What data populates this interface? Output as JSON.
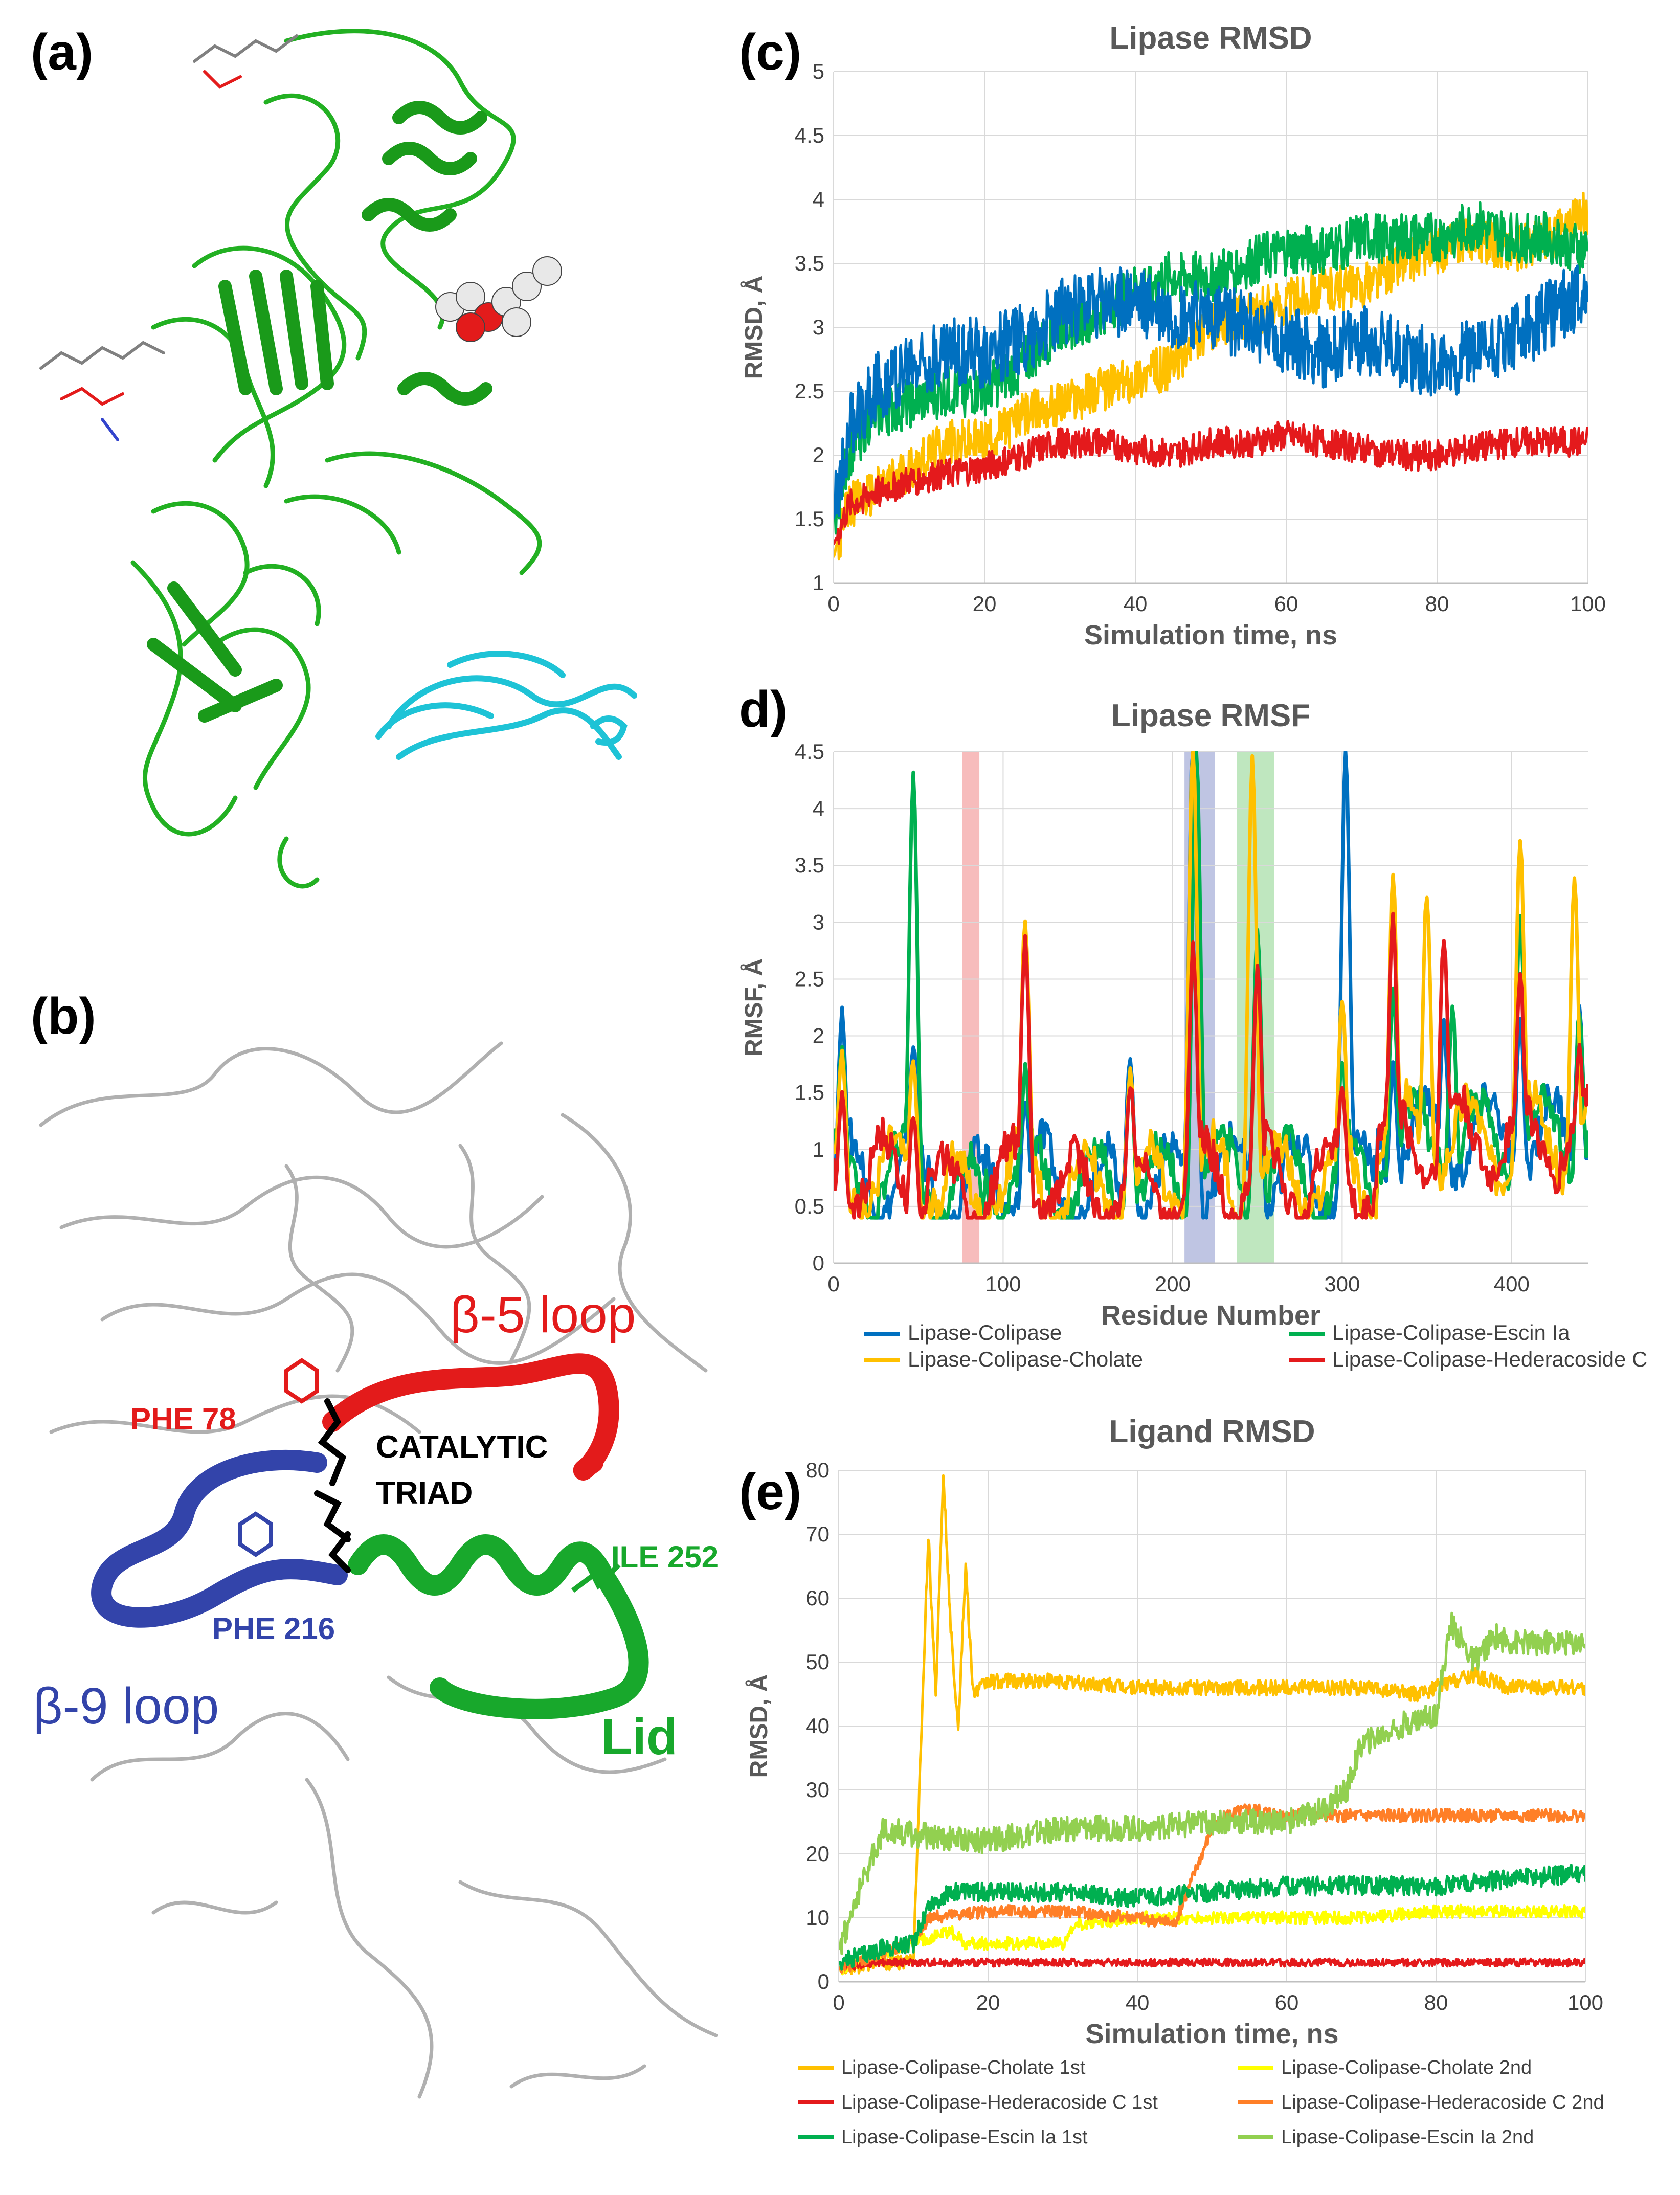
{
  "panels": {
    "a": "(a)",
    "b": "(b)",
    "c": "(c)",
    "d": "d)",
    "e": "(e)"
  },
  "structure_labels": {
    "beta5": "β-5 loop",
    "beta9": "β-9 loop",
    "lid": "Lid",
    "phe78": "PHE 78",
    "phe216": "PHE 216",
    "ile252": "ILE 252",
    "catalytic": "CATALYTIC",
    "triad": "TRIAD"
  },
  "colors": {
    "lipase_ribbon": "#22b022",
    "colipase_ribbon": "#1ec3d6",
    "beta5_loop": "#e31b1b",
    "beta9_loop": "#3344aa",
    "lid": "#18a82c",
    "triad": "#000000",
    "backbone_gray": "#b0b0b0"
  },
  "chart_data": [
    {
      "id": "c",
      "type": "line",
      "title": "Lipase RMSD",
      "xlabel": "Simulation time, ns",
      "ylabel": "RMSD, Å",
      "xlim": [
        0,
        100
      ],
      "ylim": [
        1,
        5
      ],
      "xticks": [
        0,
        20,
        40,
        60,
        80,
        100
      ],
      "yticks": [
        1,
        1.5,
        2,
        2.5,
        3,
        3.5,
        4,
        4.5,
        5
      ],
      "grid": true,
      "series": [
        {
          "name": "Lipase-Colipase-Cholate",
          "color": "#ffc000",
          "x": [
            0,
            2,
            5,
            10,
            15,
            20,
            25,
            30,
            35,
            40,
            45,
            50,
            55,
            60,
            65,
            70,
            75,
            80,
            85,
            90,
            95,
            100
          ],
          "y": [
            1.2,
            1.6,
            1.7,
            1.9,
            2.1,
            2.1,
            2.3,
            2.4,
            2.5,
            2.6,
            2.7,
            3.0,
            3.1,
            3.2,
            3.3,
            3.3,
            3.5,
            3.6,
            3.7,
            3.6,
            3.7,
            3.9
          ],
          "noise": 0.18
        },
        {
          "name": "Lipase-Colipase-Escin Ia",
          "color": "#00b050",
          "x": [
            0,
            2,
            5,
            10,
            15,
            20,
            25,
            30,
            35,
            40,
            45,
            50,
            55,
            60,
            65,
            70,
            75,
            80,
            85,
            90,
            95,
            100
          ],
          "y": [
            1.5,
            2.0,
            2.3,
            2.4,
            2.5,
            2.5,
            2.7,
            3.0,
            3.1,
            3.3,
            3.4,
            3.4,
            3.5,
            3.6,
            3.6,
            3.7,
            3.7,
            3.7,
            3.8,
            3.7,
            3.7,
            3.6
          ],
          "noise": 0.2
        },
        {
          "name": "Lipase-Colipase-Hederacoside C",
          "color": "#e41a1c",
          "x": [
            0,
            2,
            5,
            10,
            15,
            20,
            25,
            30,
            35,
            40,
            45,
            50,
            55,
            60,
            65,
            70,
            75,
            80,
            85,
            90,
            95,
            100
          ],
          "y": [
            1.3,
            1.6,
            1.7,
            1.8,
            1.85,
            1.9,
            2.0,
            2.1,
            2.1,
            2.05,
            2.0,
            2.1,
            2.1,
            2.15,
            2.1,
            2.05,
            2.0,
            2.0,
            2.05,
            2.1,
            2.1,
            2.1
          ],
          "noise": 0.12
        },
        {
          "name": "Lipase-Colipase",
          "color": "#0070c0",
          "x": [
            0,
            2,
            5,
            10,
            15,
            20,
            25,
            30,
            35,
            40,
            45,
            50,
            55,
            60,
            65,
            70,
            75,
            80,
            85,
            90,
            95,
            100
          ],
          "y": [
            1.5,
            2.2,
            2.5,
            2.7,
            2.8,
            2.8,
            2.9,
            3.1,
            3.2,
            3.2,
            3.1,
            3.1,
            3.0,
            2.9,
            2.8,
            2.9,
            2.8,
            2.7,
            2.8,
            2.9,
            3.1,
            3.3
          ],
          "noise": 0.28
        }
      ]
    },
    {
      "id": "d",
      "type": "line",
      "title": "Lipase RMSF",
      "xlabel": "Residue Number",
      "ylabel": "RMSF, Å",
      "xlim": [
        0,
        445
      ],
      "ylim": [
        0,
        4.5
      ],
      "xticks": [
        0,
        100,
        200,
        300,
        400
      ],
      "yticks": [
        0,
        0.5,
        1,
        1.5,
        2,
        2.5,
        3,
        3.5,
        4,
        4.5
      ],
      "grid": true,
      "highlights": [
        {
          "from": 76,
          "to": 86,
          "color": "#f4a6a6"
        },
        {
          "from": 207,
          "to": 225,
          "color": "#a9b2d9"
        },
        {
          "from": 238,
          "to": 260,
          "color": "#a9dfa9"
        }
      ],
      "legend_position": "bottom",
      "series": [
        {
          "name": "Lipase-Colipase",
          "color": "#0070c0",
          "peaks": [
            [
              5,
              1.9
            ],
            [
              47,
              1.6
            ],
            [
              80,
              0.5
            ],
            [
              113,
              1.2
            ],
            [
              175,
              1.7
            ],
            [
              212,
              4.5
            ],
            [
              250,
              2.6
            ],
            [
              302,
              4.3
            ],
            [
              330,
              1.5
            ],
            [
              360,
              1.8
            ],
            [
              405,
              1.9
            ],
            [
              440,
              2.0
            ]
          ]
        },
        {
          "name": "Lipase-Colipase-Escin Ia",
          "color": "#00b050",
          "peaks": [
            [
              5,
              1.6
            ],
            [
              47,
              4.0
            ],
            [
              113,
              1.4
            ],
            [
              175,
              1.5
            ],
            [
              214,
              4.4
            ],
            [
              250,
              2.8
            ],
            [
              300,
              1.5
            ],
            [
              330,
              2.1
            ],
            [
              365,
              2.0
            ],
            [
              405,
              2.8
            ],
            [
              440,
              2.0
            ]
          ]
        },
        {
          "name": "Lipase-Colipase-Cholate",
          "color": "#ffc000",
          "peaks": [
            [
              5,
              1.6
            ],
            [
              47,
              1.6
            ],
            [
              113,
              2.7
            ],
            [
              175,
              1.5
            ],
            [
              212,
              4.4
            ],
            [
              247,
              4.3
            ],
            [
              300,
              2.0
            ],
            [
              330,
              3.0
            ],
            [
              350,
              3.0
            ],
            [
              405,
              3.4
            ],
            [
              437,
              3.1
            ]
          ]
        },
        {
          "name": "Lipase-Colipase-Hederacoside C",
          "color": "#e41a1c",
          "peaks": [
            [
              5,
              1.3
            ],
            [
              47,
              1.2
            ],
            [
              113,
              2.6
            ],
            [
              175,
              1.3
            ],
            [
              212,
              2.5
            ],
            [
              250,
              2.3
            ],
            [
              300,
              1.3
            ],
            [
              330,
              2.6
            ],
            [
              360,
              2.5
            ],
            [
              405,
              2.1
            ],
            [
              440,
              1.5
            ]
          ]
        }
      ]
    },
    {
      "id": "e",
      "type": "line",
      "title": "Ligand RMSD",
      "xlabel": "Simulation time, ns",
      "ylabel": "RMSD, Å",
      "xlim": [
        0,
        100
      ],
      "ylim": [
        0,
        80
      ],
      "xticks": [
        0,
        20,
        40,
        60,
        80,
        100
      ],
      "yticks": [
        0,
        10,
        20,
        30,
        40,
        50,
        60,
        70,
        80
      ],
      "grid": true,
      "legend_position": "bottom",
      "series": [
        {
          "name": "Lipase-Colipase-Cholate 1st",
          "color": "#ffc000",
          "x": [
            0,
            5,
            10,
            12,
            13,
            14,
            15,
            16,
            17,
            18,
            20,
            30,
            40,
            50,
            60,
            70,
            78,
            82,
            85,
            90,
            95,
            100
          ],
          "y": [
            2,
            3,
            3,
            70,
            45,
            80,
            55,
            40,
            65,
            45,
            47,
            47,
            46,
            46,
            46,
            46,
            45,
            47,
            48,
            46,
            46,
            46
          ],
          "noise": 1.2
        },
        {
          "name": "Lipase-Colipase-Cholate 2nd",
          "color": "#ffff00",
          "x": [
            0,
            5,
            10,
            15,
            17,
            20,
            25,
            30,
            32,
            40,
            50,
            60,
            70,
            80,
            90,
            100
          ],
          "y": [
            2,
            4,
            6,
            8,
            6,
            6,
            6,
            6,
            9,
            10,
            10,
            10,
            10,
            11,
            11,
            11
          ],
          "noise": 1.0
        },
        {
          "name": "Lipase-Colipase-Hederacoside C 1st",
          "color": "#e41a1c",
          "x": [
            0,
            5,
            10,
            20,
            30,
            40,
            50,
            60,
            70,
            80,
            90,
            100
          ],
          "y": [
            2,
            3,
            3,
            3,
            3,
            3,
            3,
            3,
            3,
            3,
            3,
            3
          ],
          "noise": 0.6
        },
        {
          "name": "Lipase-Colipase-Hederacoside C 2nd",
          "color": "#ff7f27",
          "x": [
            0,
            5,
            10,
            12,
            20,
            30,
            40,
            45,
            48,
            50,
            52,
            55,
            60,
            70,
            80,
            90,
            100
          ],
          "y": [
            2,
            4,
            6,
            10,
            11,
            11,
            10,
            9,
            18,
            24,
            26,
            27,
            26,
            26,
            26,
            26,
            26
          ],
          "noise": 1.0
        },
        {
          "name": "Lipase-Colipase-Escin Ia 1st",
          "color": "#00b050",
          "x": [
            0,
            5,
            10,
            12,
            15,
            20,
            30,
            40,
            50,
            60,
            70,
            80,
            90,
            100
          ],
          "y": [
            3,
            5,
            6,
            12,
            14,
            14,
            14,
            13,
            14,
            15,
            15,
            15,
            16,
            17
          ],
          "noise": 1.5
        },
        {
          "name": "Lipase-Colipase-Escin Ia 2nd",
          "color": "#92d050",
          "x": [
            0,
            3,
            6,
            10,
            20,
            30,
            40,
            50,
            60,
            65,
            68,
            70,
            75,
            80,
            82,
            85,
            88,
            90,
            95,
            100
          ],
          "y": [
            5,
            15,
            24,
            23,
            22,
            24,
            24,
            25,
            25,
            27,
            30,
            37,
            40,
            42,
            56,
            50,
            54,
            53,
            53,
            53
          ],
          "noise": 2.0
        }
      ]
    }
  ]
}
